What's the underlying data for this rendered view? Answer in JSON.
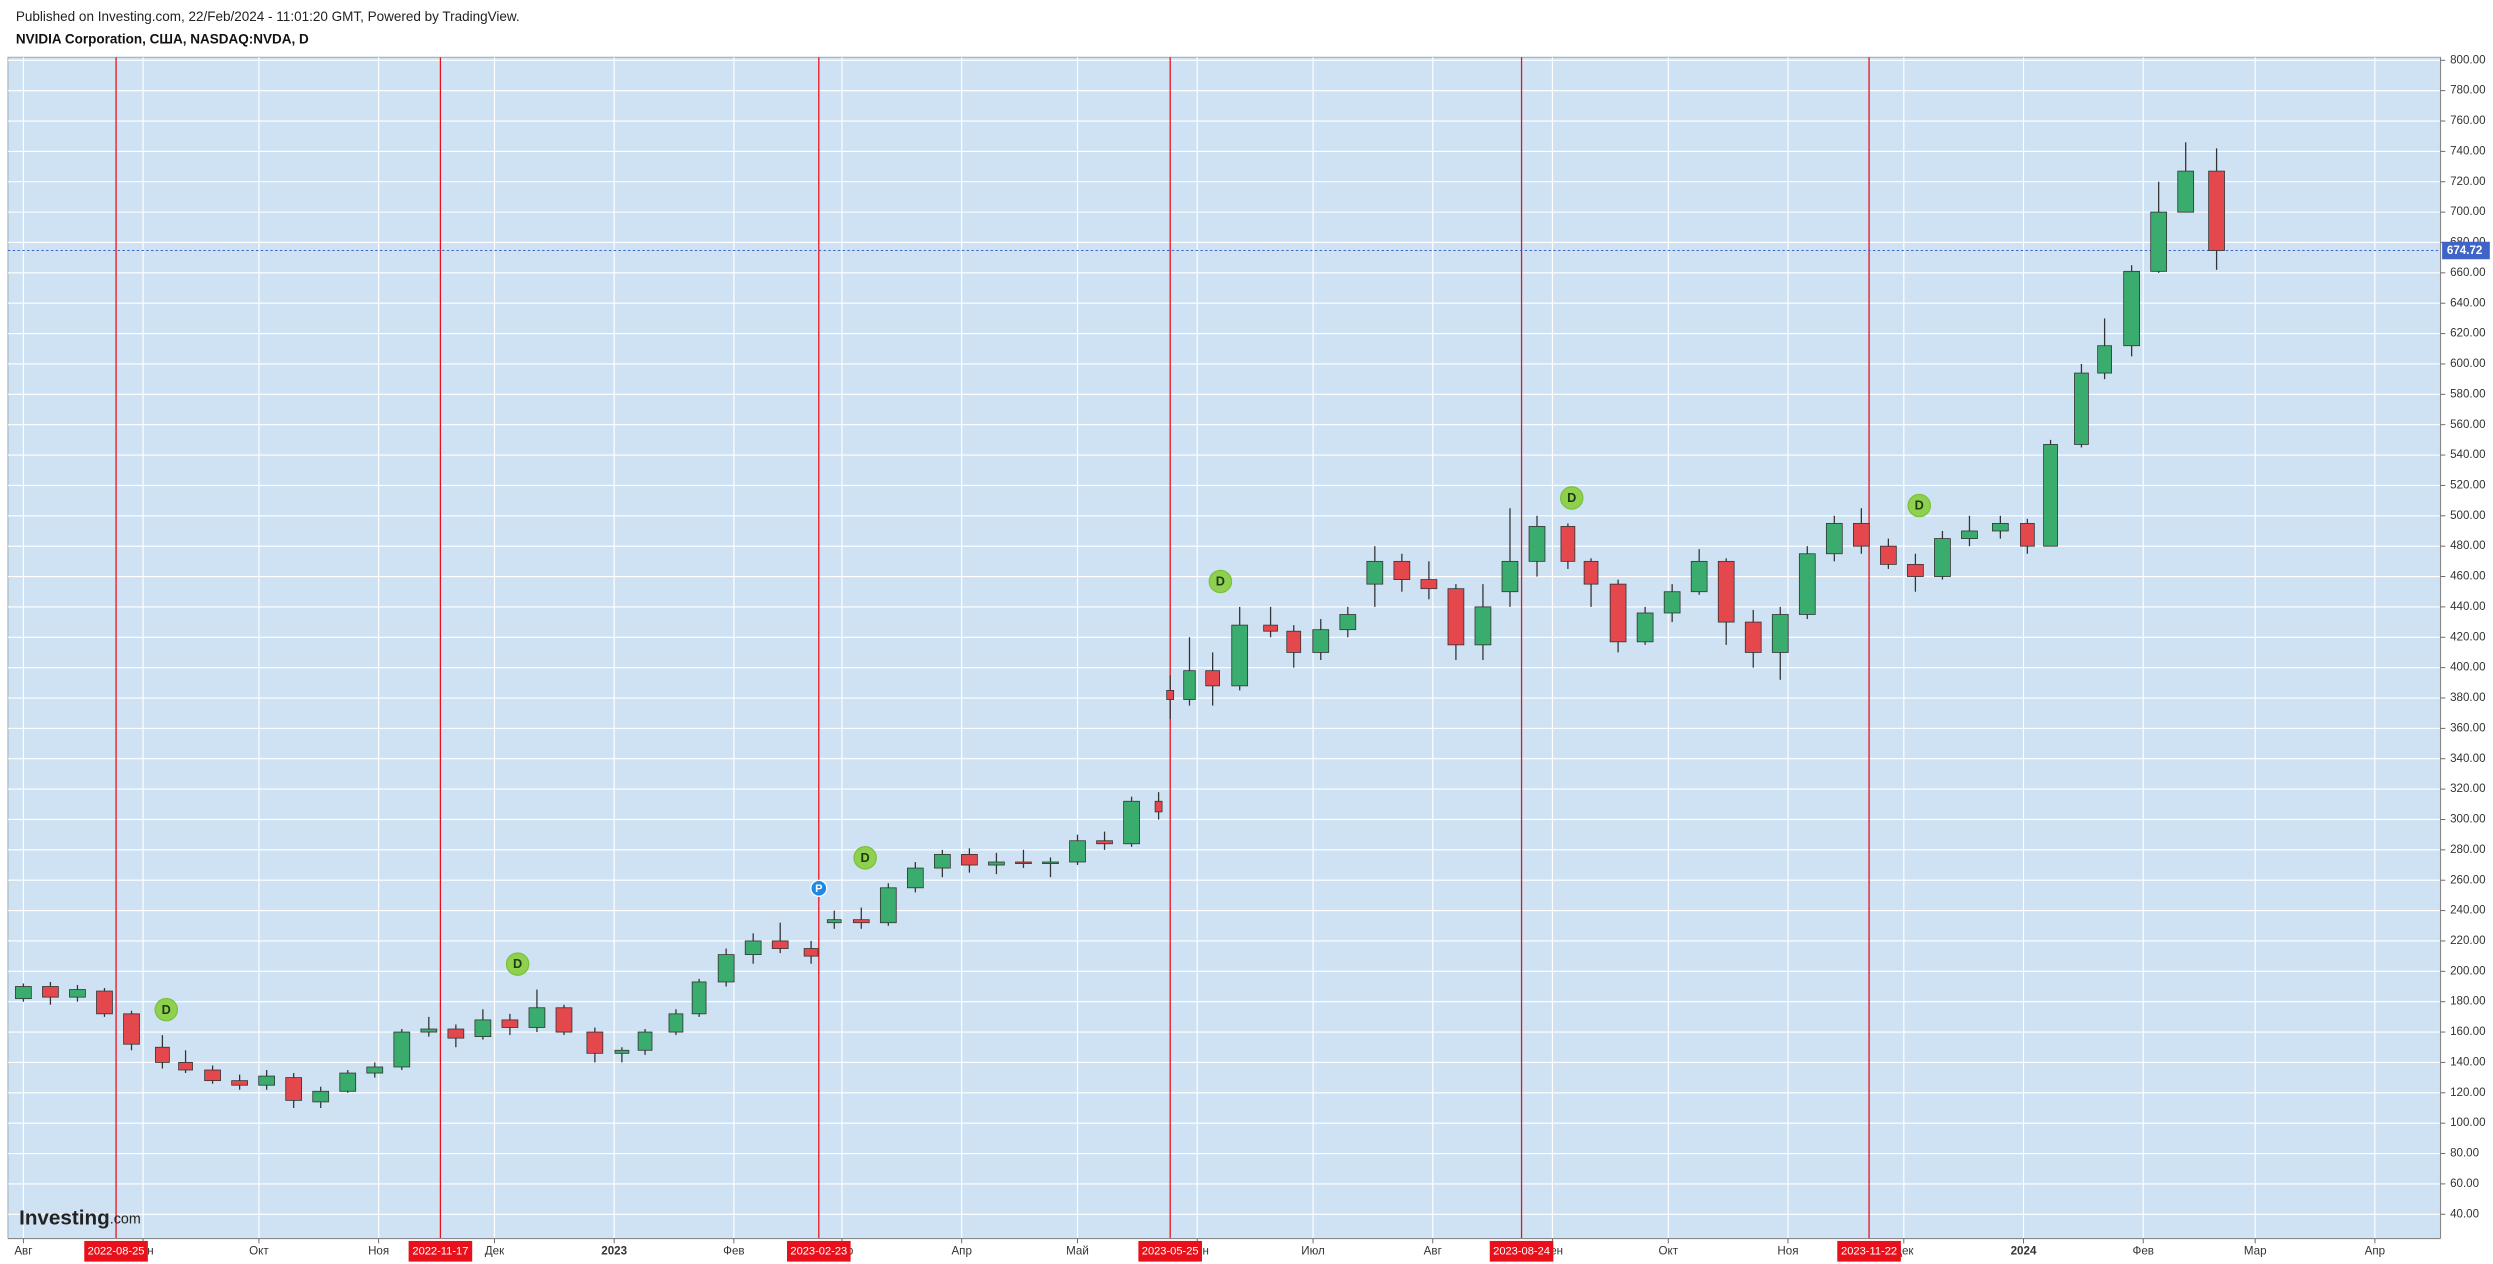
{
  "header": {
    "published": "Published on Investing.com, 22/Feb/2024 - 11:01:20 GMT, Powered by TradingView.",
    "title": "NVIDIA Corporation, США, NASDAQ:NVDA, D"
  },
  "logo": {
    "name": "Investing",
    "suffix": ".com"
  },
  "chart_data": {
    "type": "candlestick",
    "up_color": "#3aad6e",
    "down_color": "#e4484c",
    "grid": true,
    "xlim": [
      "2022-07-28",
      "2024-04-18"
    ],
    "ylim": [
      24,
      802
    ],
    "xticks": [
      {
        "value": "2022-08",
        "label": "Авг"
      },
      {
        "value": "2022-09",
        "label": "Сен"
      },
      {
        "value": "2022-10",
        "label": "Окт"
      },
      {
        "value": "2022-11",
        "label": "Ноя"
      },
      {
        "value": "2022-12",
        "label": "Дек"
      },
      {
        "value": "2023-01",
        "label": "2023"
      },
      {
        "value": "2023-02",
        "label": "Фев"
      },
      {
        "value": "2023-03",
        "label": "Мар"
      },
      {
        "value": "2023-04",
        "label": "Апр"
      },
      {
        "value": "2023-05",
        "label": "Май"
      },
      {
        "value": "2023-06",
        "label": "Июн"
      },
      {
        "value": "2023-07",
        "label": "Июл"
      },
      {
        "value": "2023-08",
        "label": "Авг"
      },
      {
        "value": "2023-09",
        "label": "Сен"
      },
      {
        "value": "2023-10",
        "label": "Окт"
      },
      {
        "value": "2023-11",
        "label": "Ноя"
      },
      {
        "value": "2023-12",
        "label": "Дек"
      },
      {
        "value": "2024-01",
        "label": "2024"
      },
      {
        "value": "2024-02",
        "label": "Фев"
      },
      {
        "value": "2024-03",
        "label": "Мар"
      },
      {
        "value": "2024-04",
        "label": "Апр"
      }
    ],
    "yticks": [
      {
        "value": 40,
        "label": "40.00"
      },
      {
        "value": 60,
        "label": "60.00"
      },
      {
        "value": 80,
        "label": "80.00"
      },
      {
        "value": 100,
        "label": "100.00"
      },
      {
        "value": 120,
        "label": "120.00"
      },
      {
        "value": 140,
        "label": "140.00"
      },
      {
        "value": 160,
        "label": "160.00"
      },
      {
        "value": 180,
        "label": "180.00"
      },
      {
        "value": 200,
        "label": "200.00"
      },
      {
        "value": 220,
        "label": "220.00"
      },
      {
        "value": 240,
        "label": "240.00"
      },
      {
        "value": 260,
        "label": "260.00"
      },
      {
        "value": 280,
        "label": "280.00"
      },
      {
        "value": 300,
        "label": "300.00"
      },
      {
        "value": 320,
        "label": "320.00"
      },
      {
        "value": 340,
        "label": "340.00"
      },
      {
        "value": 360,
        "label": "360.00"
      },
      {
        "value": 380,
        "label": "380.00"
      },
      {
        "value": 400,
        "label": "400.00"
      },
      {
        "value": 420,
        "label": "420.00"
      },
      {
        "value": 440,
        "label": "440.00"
      },
      {
        "value": 460,
        "label": "460.00"
      },
      {
        "value": 480,
        "label": "480.00"
      },
      {
        "value": 500,
        "label": "500.00"
      },
      {
        "value": 520,
        "label": "520.00"
      },
      {
        "value": 540,
        "label": "540.00"
      },
      {
        "value": 560,
        "label": "560.00"
      },
      {
        "value": 580,
        "label": "580.00"
      },
      {
        "value": 600,
        "label": "600.00"
      },
      {
        "value": 620,
        "label": "620.00"
      },
      {
        "value": 640,
        "label": "640.00"
      },
      {
        "value": 660,
        "label": "660.00"
      },
      {
        "value": 680,
        "label": "680.00"
      },
      {
        "value": 700,
        "label": "700.00"
      },
      {
        "value": 720,
        "label": "720.00"
      },
      {
        "value": 740,
        "label": "740.00"
      },
      {
        "value": 760,
        "label": "760.00"
      },
      {
        "value": 780,
        "label": "780.00"
      },
      {
        "value": 800,
        "label": "800.00"
      }
    ],
    "x": [
      "2022-08-01",
      "2022-08-08",
      "2022-08-15",
      "2022-08-22",
      "2022-08-29",
      "2022-09-06",
      "2022-09-12",
      "2022-09-19",
      "2022-09-26",
      "2022-10-03",
      "2022-10-10",
      "2022-10-17",
      "2022-10-24",
      "2022-10-31",
      "2022-11-07",
      "2022-11-14",
      "2022-11-21",
      "2022-11-28",
      "2022-12-05",
      "2022-12-12",
      "2022-12-19",
      "2022-12-27",
      "2023-01-03",
      "2023-01-09",
      "2023-01-17",
      "2023-01-23",
      "2023-01-30",
      "2023-02-06",
      "2023-02-13",
      "2023-02-21",
      "2023-02-27",
      "2023-03-06",
      "2023-03-13",
      "2023-03-20",
      "2023-03-27",
      "2023-04-03",
      "2023-04-10",
      "2023-04-17",
      "2023-04-24",
      "2023-05-01",
      "2023-05-08",
      "2023-05-15",
      "2023-05-22",
      "2023-05-25",
      "2023-05-30",
      "2023-06-05",
      "2023-06-12",
      "2023-06-20",
      "2023-06-26",
      "2023-07-03",
      "2023-07-10",
      "2023-07-17",
      "2023-07-24",
      "2023-07-31",
      "2023-08-07",
      "2023-08-14",
      "2023-08-21",
      "2023-08-28",
      "2023-09-05",
      "2023-09-11",
      "2023-09-18",
      "2023-09-25",
      "2023-10-02",
      "2023-10-09",
      "2023-10-16",
      "2023-10-23",
      "2023-10-30",
      "2023-11-06",
      "2023-11-13",
      "2023-11-20",
      "2023-11-27",
      "2023-12-04",
      "2023-12-11",
      "2023-12-18",
      "2023-12-26",
      "2024-01-02",
      "2024-01-08",
      "2024-01-16",
      "2024-01-22",
      "2024-01-29",
      "2024-02-05",
      "2024-02-12",
      "2024-02-20"
    ],
    "open": [
      182,
      190,
      183,
      187,
      172,
      150,
      140,
      135,
      128,
      125,
      130,
      114,
      121,
      133,
      137,
      160,
      162,
      157,
      168,
      163,
      176,
      160,
      146,
      148,
      160,
      172,
      193,
      211,
      220,
      215,
      232,
      234,
      232,
      255,
      268,
      277,
      270,
      272,
      271,
      272,
      286,
      284,
      312,
      385,
      379,
      398,
      388,
      428,
      424,
      410,
      425,
      455,
      470,
      458,
      452,
      415,
      450,
      470,
      493,
      470,
      455,
      417,
      436,
      450,
      470,
      430,
      410,
      435,
      475,
      495,
      480,
      468,
      460,
      485,
      490,
      495,
      480,
      547,
      594,
      612,
      661,
      700,
      727
    ],
    "high": [
      192,
      193,
      191,
      189,
      174,
      158,
      148,
      138,
      132,
      135,
      133,
      124,
      135,
      140,
      162,
      170,
      165,
      175,
      172,
      188,
      178,
      163,
      150,
      162,
      175,
      195,
      215,
      225,
      232,
      220,
      240,
      242,
      258,
      272,
      280,
      281,
      278,
      280,
      275,
      290,
      292,
      315,
      318,
      395,
      420,
      410,
      440,
      440,
      428,
      432,
      440,
      480,
      475,
      470,
      455,
      455,
      505,
      500,
      495,
      472,
      458,
      440,
      455,
      478,
      472,
      438,
      440,
      480,
      500,
      505,
      485,
      475,
      490,
      500,
      500,
      498,
      550,
      600,
      630,
      665,
      720,
      746,
      742
    ],
    "low": [
      180,
      178,
      180,
      170,
      148,
      136,
      133,
      126,
      122,
      122,
      110,
      110,
      120,
      130,
      135,
      157,
      150,
      155,
      158,
      160,
      158,
      140,
      140,
      145,
      158,
      170,
      190,
      205,
      212,
      205,
      228,
      228,
      230,
      252,
      262,
      265,
      264,
      268,
      262,
      270,
      280,
      282,
      300,
      366,
      375,
      375,
      385,
      420,
      400,
      405,
      420,
      440,
      450,
      445,
      405,
      405,
      440,
      460,
      465,
      440,
      410,
      415,
      430,
      448,
      415,
      400,
      392,
      432,
      470,
      475,
      465,
      450,
      458,
      480,
      485,
      475,
      480,
      545,
      590,
      605,
      660,
      700,
      662
    ],
    "close": [
      190,
      183,
      188,
      172,
      152,
      140,
      135,
      128,
      125,
      131,
      115,
      121,
      133,
      137,
      160,
      162,
      156,
      168,
      163,
      176,
      160,
      146,
      148,
      160,
      172,
      193,
      211,
      220,
      215,
      210,
      234,
      232,
      255,
      268,
      277,
      270,
      272,
      271,
      272,
      286,
      284,
      312,
      305,
      379,
      398,
      388,
      428,
      424,
      410,
      425,
      435,
      470,
      458,
      452,
      415,
      440,
      470,
      493,
      470,
      455,
      417,
      436,
      450,
      470,
      430,
      410,
      435,
      475,
      495,
      480,
      468,
      460,
      485,
      490,
      495,
      480,
      547,
      594,
      612,
      661,
      700,
      727,
      674.72
    ],
    "events": [
      "2022-08-25",
      "2022-11-17",
      "2023-02-23",
      "2023-05-25",
      "2023-08-24",
      "2023-11-22"
    ],
    "markers": [
      {
        "date": "2022-09-07",
        "label": "D"
      },
      {
        "date": "2022-12-07",
        "label": "D"
      },
      {
        "date": "2023-02-23",
        "label": "P"
      },
      {
        "date": "2023-03-07",
        "label": "D"
      },
      {
        "date": "2023-06-07",
        "label": "D"
      },
      {
        "date": "2023-09-06",
        "label": "D"
      },
      {
        "date": "2023-12-05",
        "label": "D"
      }
    ],
    "last_price": 674.72
  }
}
